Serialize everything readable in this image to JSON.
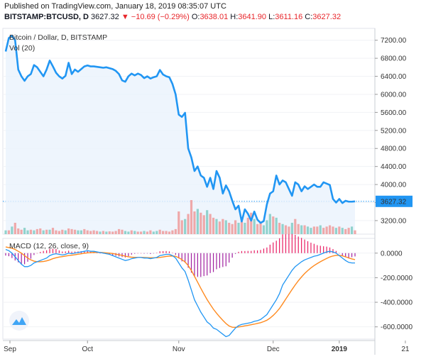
{
  "header": {
    "published": "Published on TradingView.com, January 18, 2019 08:35:07 UTC",
    "symbol": "BITSTAMP:BTCUSD, D",
    "last": "3627.32",
    "change": "▼ −10.69 (−0.29%)",
    "o_label": "O:",
    "o_value": "3638.01",
    "h_label": "H:",
    "h_value": "3641.90",
    "l_label": "L:",
    "l_value": "3611.16",
    "c_label": "C:",
    "c_value": "3627.32"
  },
  "colors": {
    "price_line": "#2196f3",
    "price_fill": "#eaf3fc",
    "vol_up": "#80cbc4",
    "vol_down": "#ef9a9a",
    "macd_line": "#2196f3",
    "signal_line": "#ff8a1f",
    "hist_pos": "#e91e63",
    "last_label_bg": "#2196f3"
  },
  "chart_data": [
    {
      "type": "line",
      "title": "Bitcoin / Dollar, D, BITSTAMP",
      "volume_label": "Vol (20)",
      "ylim": [
        2900,
        7400
      ],
      "y_ticks": [
        "7200.00",
        "6800.00",
        "6400.00",
        "6000.00",
        "5600.00",
        "5200.00",
        "4800.00",
        "4400.00",
        "4000.00",
        "3600.00",
        "3200.00"
      ],
      "y_tick_values": [
        7200,
        6800,
        6400,
        6000,
        5600,
        5200,
        4800,
        4400,
        4000,
        3600,
        3200
      ],
      "last_price_label": "3627.32",
      "x_ticks": [
        "Sep",
        "Oct",
        "Nov",
        "Dec",
        "2019",
        "21"
      ],
      "series": [
        {
          "values": [
            6950,
            7250,
            7300,
            7200,
            6550,
            6400,
            6300,
            6400,
            6450,
            6650,
            6600,
            6500,
            6400,
            6550,
            6750,
            6620,
            6480,
            6400,
            6350,
            6410,
            6700,
            6450,
            6550,
            6500,
            6560,
            6620,
            6640,
            6620,
            6620,
            6610,
            6600,
            6590,
            6600,
            6580,
            6560,
            6520,
            6450,
            6310,
            6280,
            6400,
            6460,
            6420,
            6460,
            6430,
            6360,
            6400,
            6350,
            6380,
            6400,
            6540,
            6440,
            6400,
            6380,
            6230,
            6000,
            5550,
            5500,
            5590,
            4800,
            4600,
            4300,
            4400,
            4200,
            4150,
            3950,
            4150,
            3900,
            4300,
            4150,
            3800,
            3980,
            3850,
            3640,
            3450,
            3530,
            3180,
            3450,
            3350,
            3200,
            3400,
            3220,
            3150,
            3190,
            3560,
            3800,
            3850,
            4200,
            4000,
            4090,
            4050,
            3900,
            3750,
            4050,
            4000,
            3850,
            3960,
            3900,
            3950,
            4000,
            3950,
            3950,
            4050,
            4020,
            3990,
            3680,
            3600,
            3680,
            3590,
            3640,
            3620,
            3620,
            3627
          ]
        }
      ],
      "volume": {
        "values": [
          0.3,
          0.3,
          0.6,
          0.9,
          0.45,
          0.35,
          0.5,
          0.3,
          0.35,
          0.3,
          0.4,
          0.45,
          0.3,
          0.35,
          0.35,
          0.5,
          0.3,
          0.25,
          0.35,
          0.3,
          0.45,
          0.4,
          0.35,
          0.3,
          0.3,
          0.4,
          0.3,
          0.25,
          0.3,
          0.25,
          0.2,
          0.25,
          0.2,
          0.22,
          0.2,
          0.25,
          0.4,
          0.35,
          0.25,
          0.2,
          0.3,
          0.25,
          0.2,
          0.2,
          0.25,
          0.2,
          0.3,
          0.2,
          0.25,
          0.35,
          0.25,
          0.25,
          0.2,
          0.3,
          0.4,
          1.8,
          1.1,
          1.2,
          1.6,
          2.7,
          1.8,
          2.0,
          1.7,
          1.5,
          1.9,
          1.6,
          1.3,
          1.2,
          1.0,
          1.2,
          1.1,
          0.9,
          0.8,
          1.1,
          0.9,
          1.0,
          0.9,
          1.3,
          1.7,
          1.2,
          0.8,
          0.9,
          0.7,
          1.1,
          1.6,
          1.4,
          1.3,
          0.9,
          0.8,
          0.7,
          0.6,
          0.9,
          1.2,
          0.8,
          0.7,
          0.7,
          0.6,
          0.5,
          0.6,
          0.6,
          0.7,
          0.5,
          0.6,
          0.7,
          0.6,
          0.5,
          0.6,
          0.5,
          0.4,
          0.5,
          0.6,
          0.3
        ],
        "up_flags": [
          1,
          0,
          1,
          0,
          0,
          0,
          1,
          1,
          0,
          1,
          0,
          0,
          1,
          0,
          1,
          0,
          0,
          0,
          0,
          1,
          0,
          0,
          0,
          1,
          1,
          0,
          0,
          0,
          0,
          0,
          1,
          0,
          1,
          0,
          0,
          0,
          0,
          0,
          1,
          1,
          0,
          1,
          0,
          0,
          1,
          0,
          0,
          1,
          1,
          0,
          0,
          0,
          0,
          0,
          0,
          0,
          0,
          1,
          0,
          0,
          0,
          1,
          0,
          0,
          1,
          0,
          0,
          1,
          0,
          0,
          1,
          0,
          0,
          0,
          1,
          0,
          1,
          0,
          0,
          1,
          0,
          0,
          1,
          1,
          1,
          0,
          1,
          0,
          1,
          0,
          0,
          1,
          0,
          0,
          1,
          0,
          1,
          1,
          0,
          0,
          1,
          0,
          0,
          0,
          0,
          1,
          0,
          1,
          0,
          0,
          1,
          0
        ]
      }
    },
    {
      "type": "line",
      "title": "MACD (12, 26, close, 9)",
      "ylim": [
        -700,
        120
      ],
      "y_ticks": [
        "0.0000",
        "-200.0000",
        "-400.0000",
        "-600.0000"
      ],
      "y_tick_values": [
        0,
        -200,
        -400,
        -600
      ],
      "series": [
        {
          "name": "MACD",
          "values": [
            30,
            20,
            0,
            -30,
            -60,
            -90,
            -110,
            -110,
            -100,
            -80,
            -70,
            -60,
            -50,
            -40,
            -20,
            -10,
            -5,
            -10,
            -15,
            -10,
            0,
            -5,
            0,
            5,
            10,
            15,
            20,
            15,
            15,
            10,
            5,
            0,
            -5,
            -10,
            -20,
            -30,
            -40,
            -50,
            -60,
            -55,
            -45,
            -40,
            -35,
            -35,
            -40,
            -40,
            -45,
            -40,
            -35,
            -20,
            -15,
            -10,
            -10,
            -20,
            -40,
            -80,
            -120,
            -150,
            -220,
            -300,
            -380,
            -430,
            -480,
            -520,
            -560,
            -580,
            -610,
            -620,
            -640,
            -660,
            -680,
            -670,
            -640,
            -610,
            -590,
            -580,
            -575,
            -570,
            -565,
            -555,
            -550,
            -540,
            -520,
            -500,
            -460,
            -420,
            -380,
            -330,
            -260,
            -220,
            -180,
            -140,
            -110,
            -90,
            -70,
            -55,
            -45,
            -35,
            -25,
            -20,
            -10,
            0,
            10,
            15,
            10,
            0,
            -20,
            -40,
            -60,
            -75,
            -80,
            -80
          ]
        },
        {
          "name": "Signal",
          "values": [
            50,
            45,
            40,
            30,
            15,
            0,
            -20,
            -40,
            -55,
            -65,
            -70,
            -70,
            -68,
            -63,
            -55,
            -45,
            -38,
            -32,
            -28,
            -24,
            -20,
            -17,
            -13,
            -9,
            -5,
            -1,
            2,
            4,
            6,
            6,
            6,
            4,
            2,
            0,
            -3,
            -8,
            -13,
            -18,
            -25,
            -30,
            -33,
            -35,
            -35,
            -35,
            -36,
            -37,
            -38,
            -38,
            -38,
            -35,
            -31,
            -27,
            -24,
            -23,
            -26,
            -37,
            -53,
            -72,
            -101,
            -141,
            -189,
            -237,
            -286,
            -333,
            -378,
            -418,
            -456,
            -489,
            -519,
            -547,
            -573,
            -593,
            -603,
            -604,
            -601,
            -597,
            -592,
            -588,
            -583,
            -578,
            -572,
            -566,
            -557,
            -546,
            -529,
            -507,
            -481,
            -451,
            -413,
            -374,
            -335,
            -296,
            -259,
            -225,
            -194,
            -166,
            -142,
            -120,
            -101,
            -85,
            -70,
            -56,
            -43,
            -31,
            -23,
            -18,
            -18,
            -22,
            -30,
            -39,
            -47,
            -53
          ]
        }
      ],
      "histogram": [
        -20,
        -25,
        -40,
        -60,
        -75,
        -90,
        -90,
        -70,
        -45,
        -15,
        0,
        10,
        18,
        23,
        35,
        35,
        33,
        22,
        13,
        14,
        20,
        12,
        13,
        14,
        15,
        16,
        18,
        11,
        9,
        4,
        -1,
        -4,
        -7,
        -10,
        -17,
        -22,
        -27,
        -32,
        -35,
        -25,
        -12,
        -5,
        0,
        0,
        -4,
        -3,
        -7,
        -2,
        3,
        15,
        16,
        17,
        14,
        3,
        -14,
        -43,
        -67,
        -78,
        -119,
        -159,
        -191,
        -193,
        -194,
        -187,
        -182,
        -162,
        -154,
        -131,
        -121,
        -113,
        -107,
        -77,
        -37,
        -6,
        11,
        17,
        17,
        18,
        18,
        23,
        22,
        26,
        37,
        46,
        69,
        87,
        101,
        121,
        153,
        154,
        155,
        156,
        149,
        135,
        124,
        111,
        97,
        85,
        76,
        65,
        60,
        56,
        53,
        46,
        33,
        18,
        -2,
        -18,
        -30,
        -36,
        -33,
        -27
      ]
    }
  ]
}
